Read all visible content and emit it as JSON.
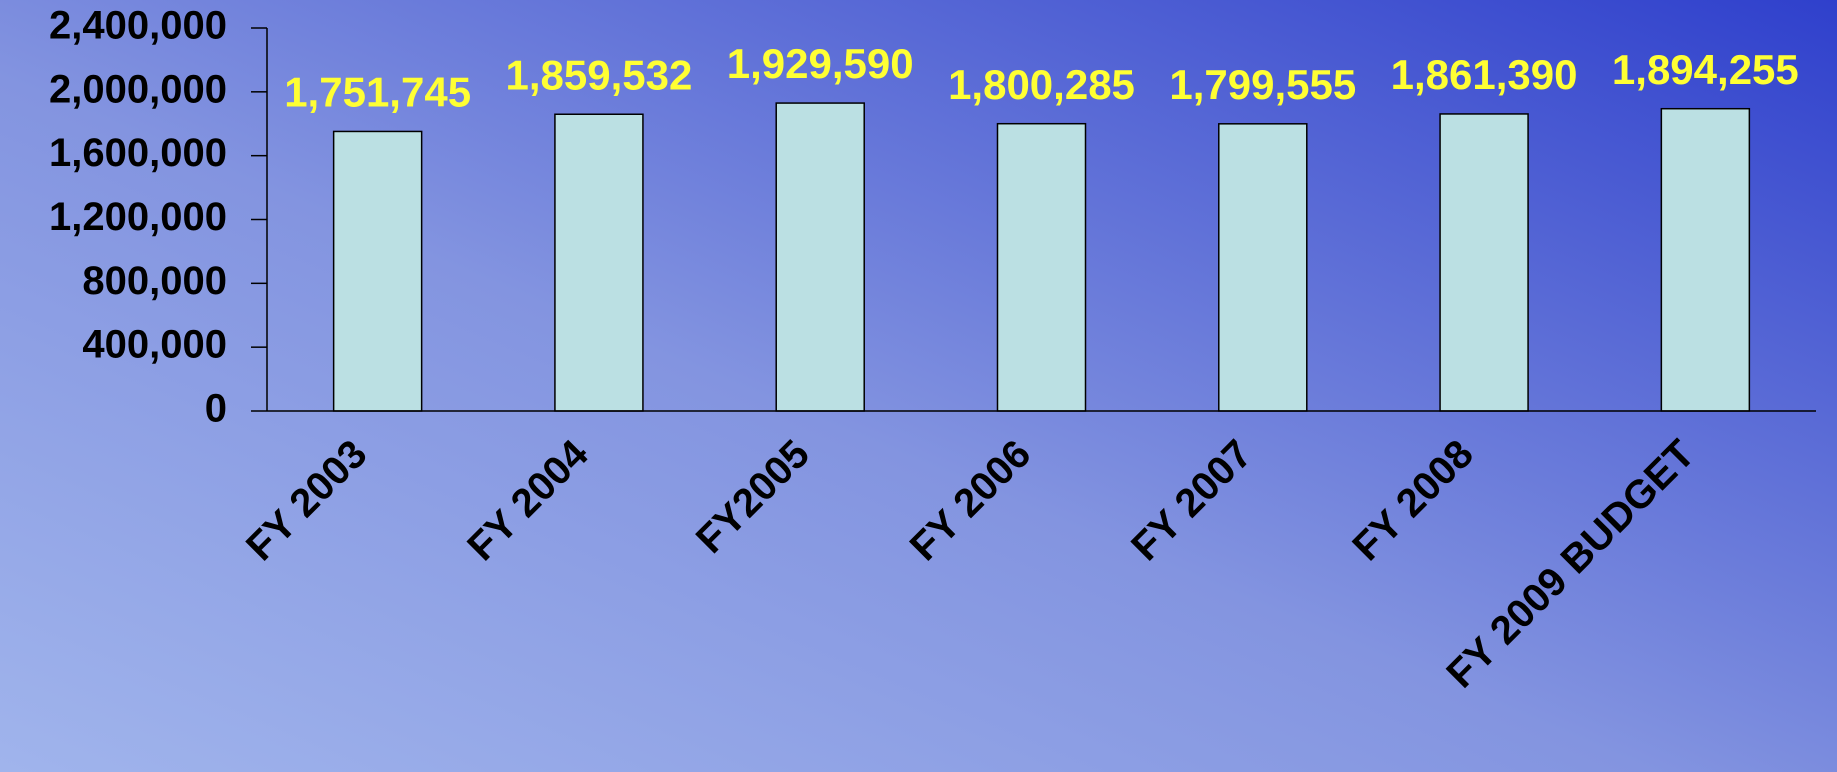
{
  "chart_data": {
    "type": "bar",
    "categories": [
      "FY 2003",
      "FY 2004",
      "FY2005",
      "FY 2006",
      "FY 2007",
      "FY 2008",
      "FY 2009 BUDGET"
    ],
    "values": [
      1751745,
      1859532,
      1929590,
      1800285,
      1799555,
      1861390,
      1894255
    ],
    "value_labels": [
      "1,751,745",
      "1,859,532",
      "1,929,590",
      "1,800,285",
      "1,799,555",
      "1,861,390",
      "1,894,255"
    ],
    "color": "#bbe0e3",
    "label_color": "#ffff33",
    "ylim": [
      0,
      2400000
    ],
    "yticks": [
      0,
      {
        "value": 400000,
        "label": "400,000"
      },
      {
        "value": 800000,
        "label": "800,000"
      },
      {
        "value": 1200000,
        "label": "1,200,000"
      },
      {
        "value": 1600000,
        "label": "1,600,000"
      },
      {
        "value": 2000000,
        "label": "2,000,000"
      },
      {
        "value": 2400000,
        "label": "2,400,000"
      }
    ],
    "grid": false
  }
}
